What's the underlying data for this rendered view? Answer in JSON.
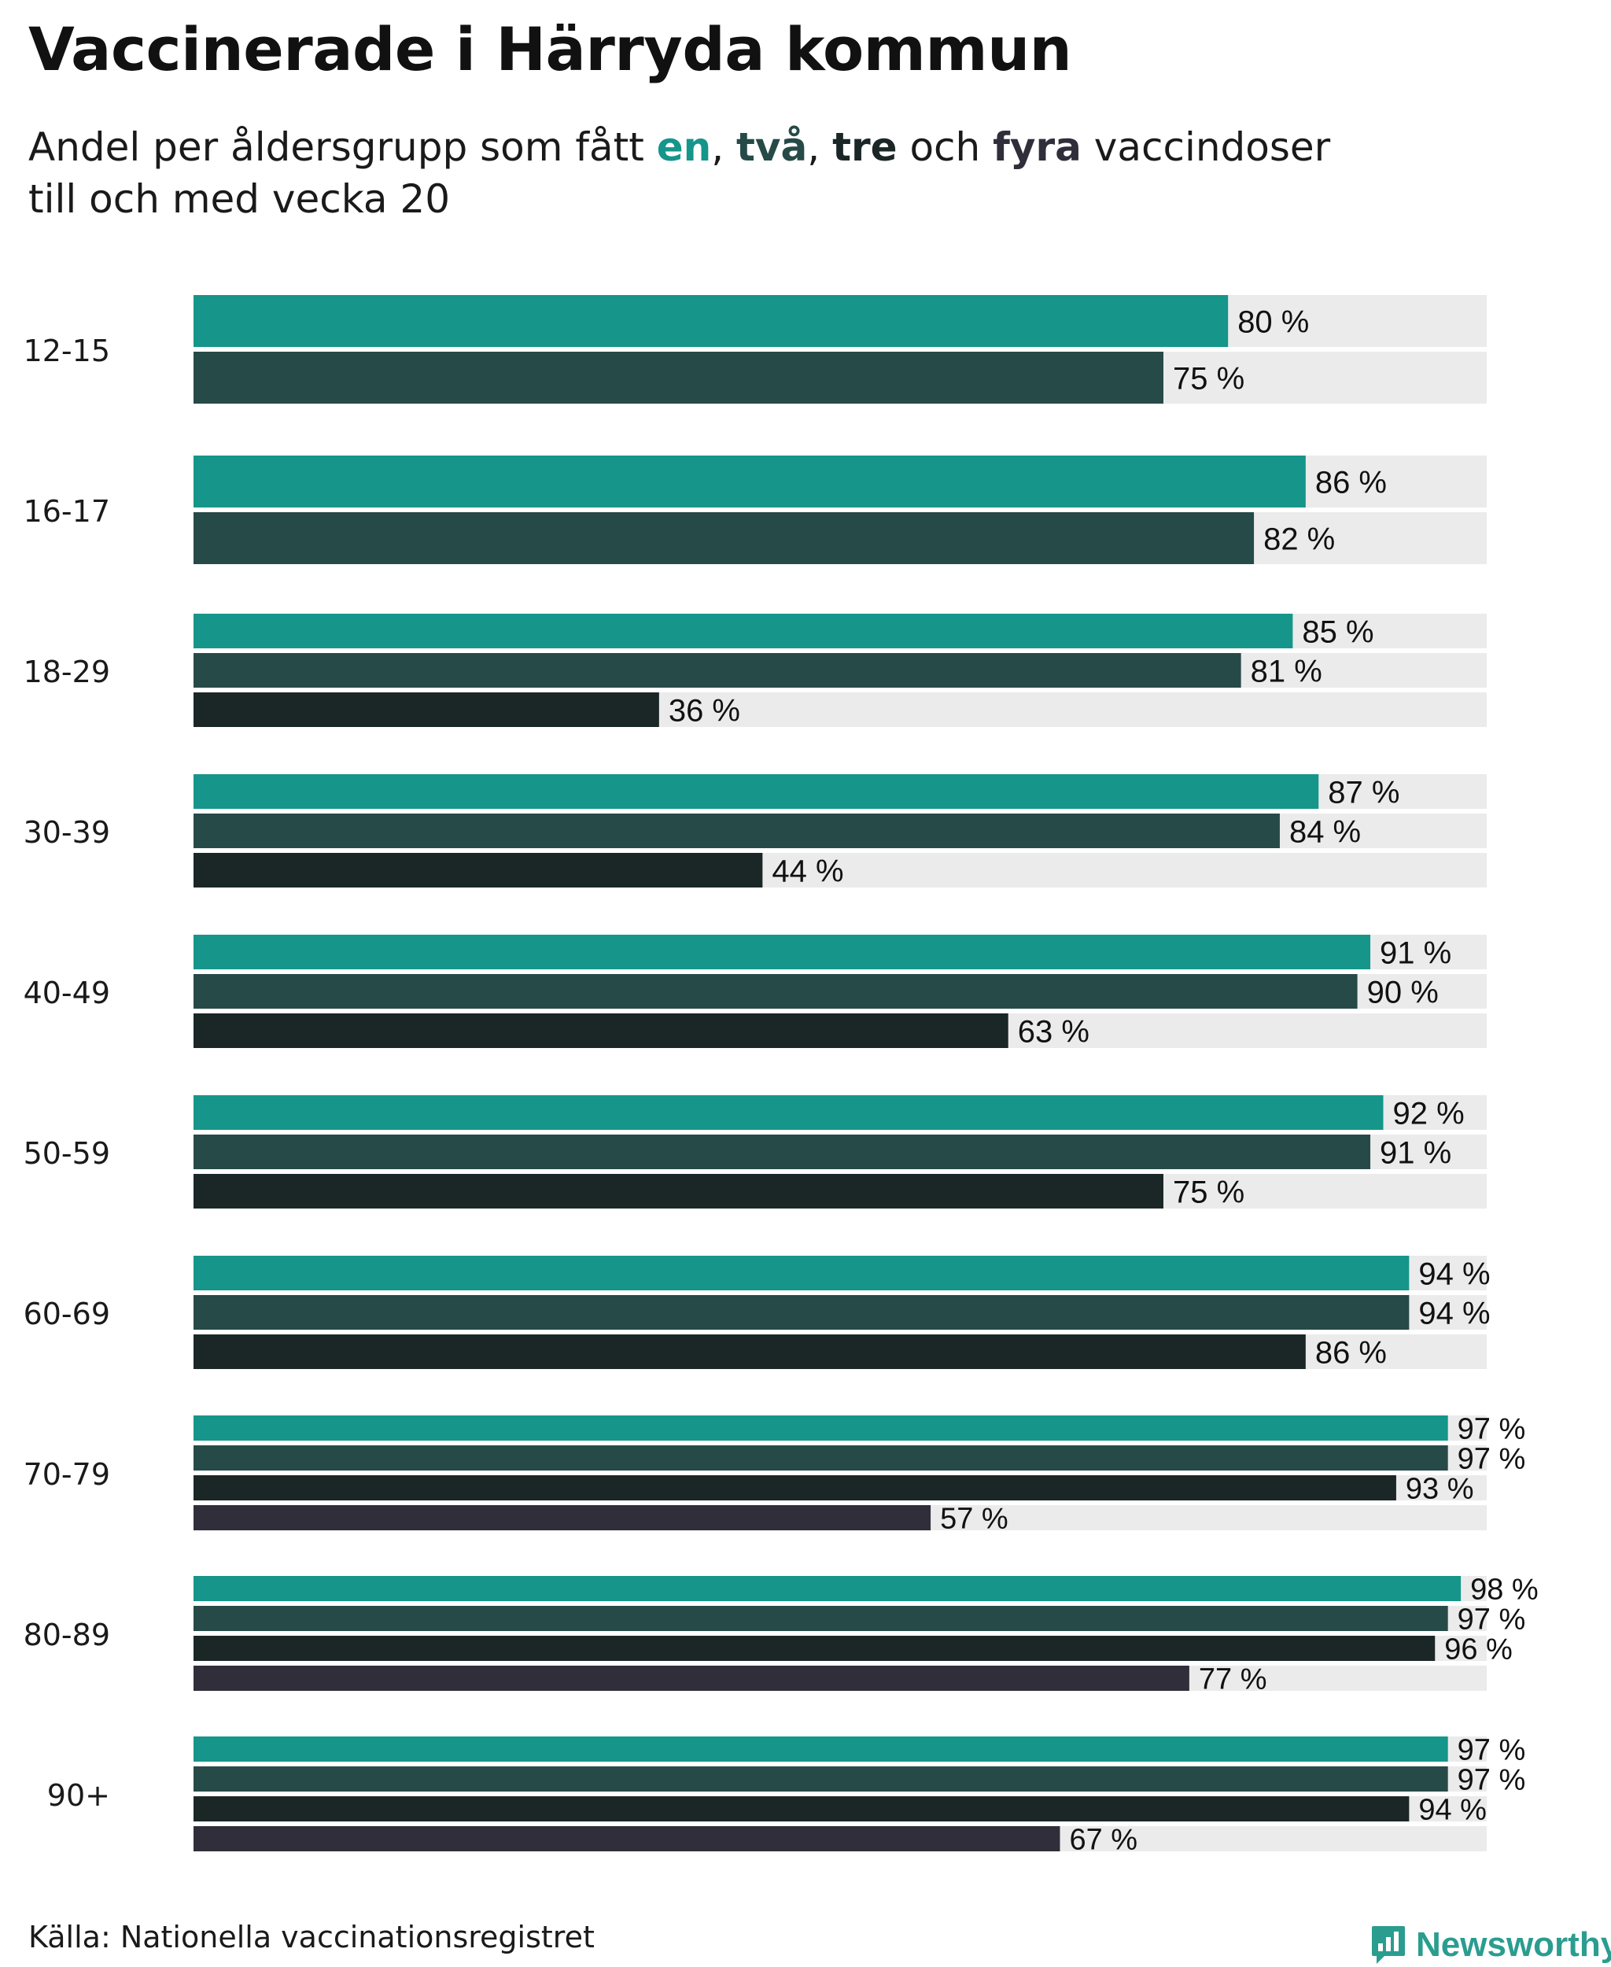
{
  "title": "Vaccinerade i Härryda kommun",
  "subtitle": {
    "before": "Andel per åldersgrupp som fått ",
    "d1": "en",
    "sep1": ", ",
    "d2": "två",
    "sep2": ", ",
    "d3": "tre",
    "mid": " och ",
    "d4": "fyra",
    "after": " vaccindoser",
    "line2": "till och med vecka 20"
  },
  "colors": {
    "dose1": "#16958a",
    "dose2": "#264a48",
    "dose3": "#1a2726",
    "dose4": "#2f2e3a",
    "track": "#ebebeb"
  },
  "chart_data": {
    "type": "bar",
    "orientation": "horizontal",
    "xlim": [
      0,
      100
    ],
    "unit": "%",
    "categories": [
      "12-15",
      "16-17",
      "18-29",
      "30-39",
      "40-49",
      "50-59",
      "60-69",
      "70-79",
      "80-89",
      "90+"
    ],
    "series": [
      {
        "values": [
          80,
          86,
          85,
          87,
          91,
          92,
          94,
          97,
          98,
          97
        ]
      },
      {
        "values": [
          75,
          82,
          81,
          84,
          90,
          91,
          94,
          97,
          97,
          97
        ]
      },
      {
        "values": [
          null,
          null,
          36,
          44,
          63,
          75,
          86,
          93,
          96,
          94
        ]
      },
      {
        "values": [
          null,
          null,
          null,
          null,
          null,
          null,
          null,
          57,
          77,
          67
        ]
      }
    ],
    "labels": [
      [
        "80 %",
        "86 %",
        "85 %",
        "87 %",
        "91 %",
        "92 %",
        "94 %",
        "97 %",
        "98 %",
        "97 %"
      ],
      [
        "75 %",
        "82 %",
        "81 %",
        "84 %",
        "90 %",
        "91 %",
        "94 %",
        "97 %",
        "97 %",
        "97 %"
      ],
      [
        null,
        null,
        "36 %",
        "44 %",
        "63 %",
        "75 %",
        "86 %",
        "93 %",
        "96 %",
        "94 %"
      ],
      [
        null,
        null,
        null,
        null,
        null,
        null,
        null,
        "57 %",
        "77 %",
        "67 %"
      ]
    ],
    "grid": false,
    "legend": "none"
  },
  "footer": {
    "source": "Källa: Nationella vaccinationsregistret",
    "logo_text": "Newsworthy",
    "logo_icon": "newsworthy-chart-icon"
  }
}
